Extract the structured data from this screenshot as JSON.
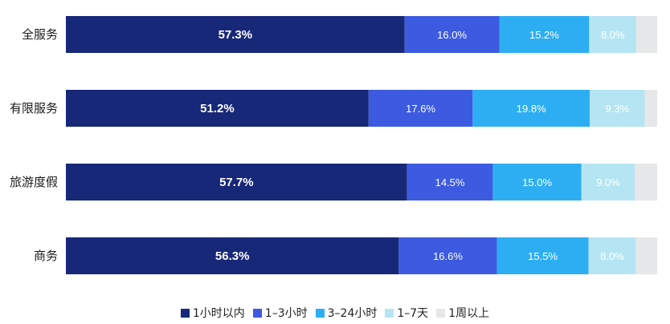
{
  "chart_data": {
    "type": "bar",
    "orientation": "horizontal",
    "stacked": true,
    "categories": [
      "全服务",
      "有限服务",
      "旅游度假",
      "商务"
    ],
    "series": [
      {
        "name": "1小时以内",
        "color": "#172878",
        "values": [
          57.3,
          51.2,
          57.7,
          56.3
        ],
        "labels": [
          "57.3%",
          "51.2%",
          "57.7%",
          "56.3%"
        ]
      },
      {
        "name": "1–3小时",
        "color": "#3d5be0",
        "values": [
          16.0,
          17.6,
          14.5,
          16.6
        ],
        "labels": [
          "16.0%",
          "17.6%",
          "14.5%",
          "16.6%"
        ]
      },
      {
        "name": "3–24小时",
        "color": "#2eaef2",
        "values": [
          15.2,
          19.8,
          15.0,
          15.5
        ],
        "labels": [
          "15.2%",
          "19.8%",
          "15.0%",
          "15.5%"
        ]
      },
      {
        "name": "1–7天",
        "color": "#b5e5f3",
        "values": [
          8.0,
          9.3,
          9.0,
          8.0
        ],
        "labels": [
          "8.0%",
          "9.3%",
          "9.0%",
          "8.0%"
        ]
      },
      {
        "name": "1周以上",
        "color": "#e6e7e9",
        "values": [
          3.5,
          2.1,
          3.8,
          3.6
        ],
        "labels": [
          "",
          "",
          "",
          ""
        ]
      }
    ],
    "xlim": [
      0,
      100
    ],
    "grid": false,
    "legend": "bottom"
  }
}
